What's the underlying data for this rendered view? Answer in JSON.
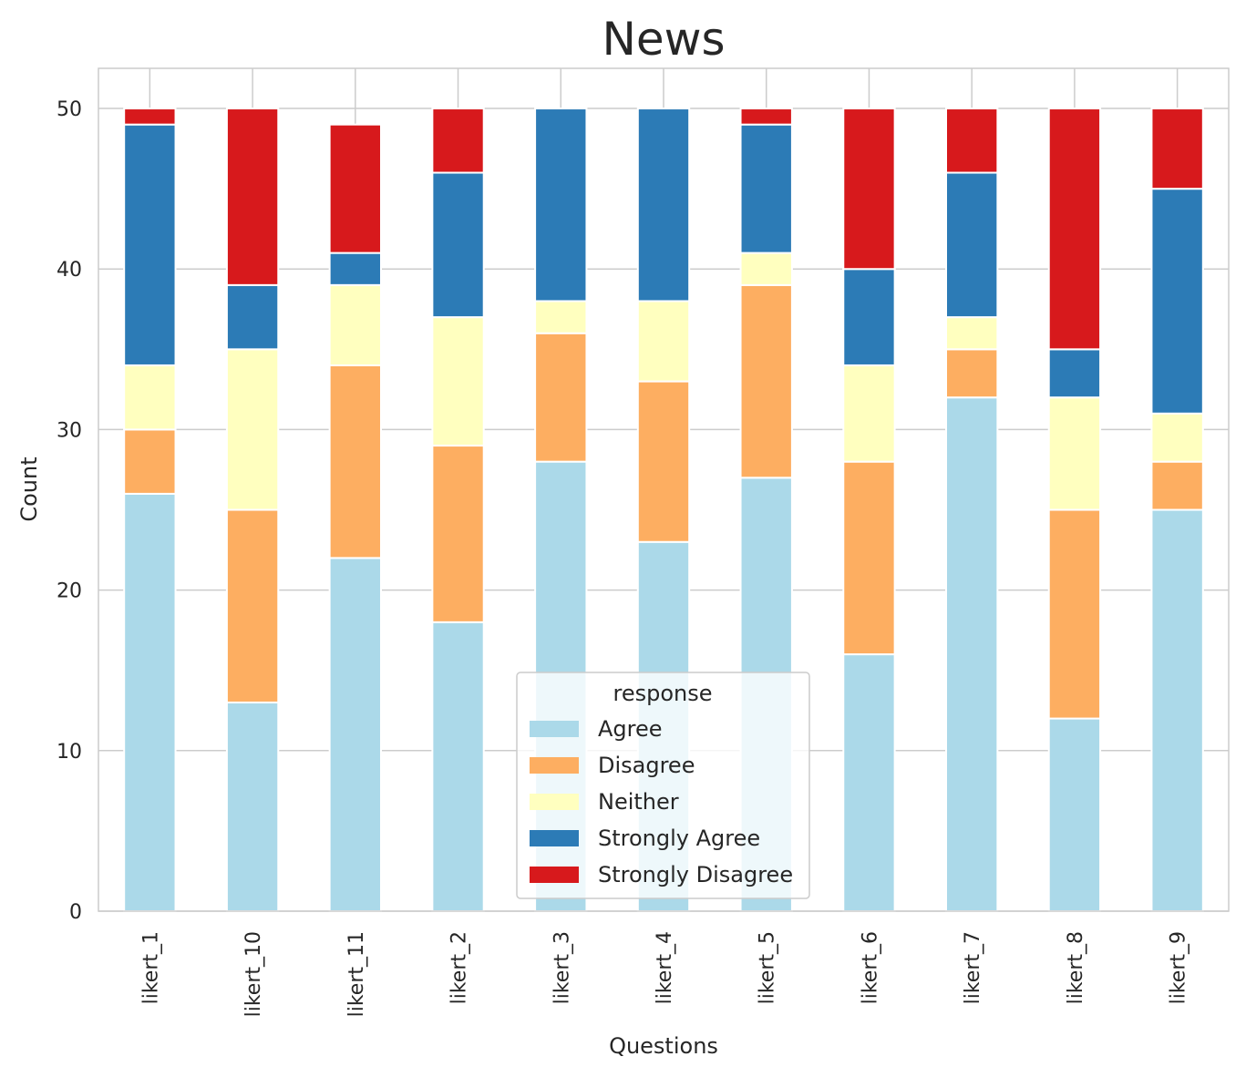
{
  "chart_data": {
    "type": "bar",
    "stacked": true,
    "title": "News",
    "xlabel": "Questions",
    "ylabel": "Count",
    "ylim": [
      0,
      52.5
    ],
    "yticks": [
      0,
      10,
      20,
      30,
      40,
      50
    ],
    "grid": true,
    "categories": [
      "likert_1",
      "likert_10",
      "likert_11",
      "likert_2",
      "likert_3",
      "likert_4",
      "likert_5",
      "likert_6",
      "likert_7",
      "likert_8",
      "likert_9"
    ],
    "series": [
      {
        "name": "Agree",
        "color": "#abd9e9",
        "values": [
          26,
          13,
          22,
          18,
          28,
          23,
          27,
          16,
          32,
          12,
          25
        ]
      },
      {
        "name": "Disagree",
        "color": "#fdae61",
        "values": [
          4,
          12,
          12,
          11,
          8,
          10,
          12,
          12,
          3,
          13,
          3
        ]
      },
      {
        "name": "Neither",
        "color": "#ffffbf",
        "values": [
          4,
          10,
          5,
          8,
          2,
          5,
          2,
          6,
          2,
          7,
          3
        ]
      },
      {
        "name": "Strongly Agree",
        "color": "#2c7bb6",
        "values": [
          15,
          4,
          2,
          9,
          12,
          12,
          8,
          6,
          9,
          3,
          14
        ]
      },
      {
        "name": "Strongly Disagree",
        "color": "#d7191c",
        "values": [
          1,
          11,
          8,
          4,
          0,
          0,
          1,
          10,
          4,
          15,
          5
        ]
      }
    ],
    "legend": {
      "title": "response",
      "position": "lower-center"
    }
  }
}
